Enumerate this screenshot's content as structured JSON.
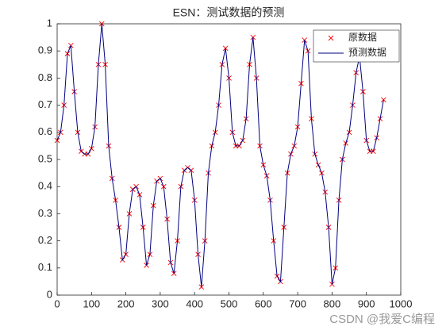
{
  "chart_data": {
    "type": "line",
    "title": "ESN：测试数据的预测",
    "x": [
      0,
      10,
      20,
      30,
      40,
      50,
      60,
      70,
      80,
      90,
      100,
      110,
      120,
      130,
      140,
      150,
      160,
      170,
      180,
      190,
      200,
      210,
      220,
      230,
      240,
      250,
      260,
      270,
      280,
      290,
      300,
      310,
      320,
      330,
      340,
      350,
      360,
      370,
      380,
      390,
      400,
      410,
      420,
      430,
      440,
      450,
      460,
      470,
      480,
      490,
      500,
      510,
      520,
      530,
      540,
      550,
      560,
      570,
      580,
      590,
      600,
      610,
      620,
      630,
      640,
      650,
      660,
      670,
      680,
      690,
      700,
      710,
      720,
      730,
      740,
      750,
      760,
      770,
      780,
      790,
      800,
      810,
      820,
      830,
      840,
      850,
      860,
      870,
      880,
      890,
      900,
      910,
      920,
      930,
      940,
      950
    ],
    "series": [
      {
        "name": "原数据",
        "color": "#ff0000",
        "marker": "x",
        "values": [
          0.57,
          0.6,
          0.7,
          0.89,
          0.92,
          0.75,
          0.6,
          0.53,
          0.52,
          0.52,
          0.54,
          0.62,
          0.85,
          1.0,
          0.85,
          0.55,
          0.43,
          0.35,
          0.25,
          0.13,
          0.15,
          0.3,
          0.39,
          0.4,
          0.37,
          0.25,
          0.11,
          0.15,
          0.33,
          0.42,
          0.43,
          0.4,
          0.28,
          0.12,
          0.08,
          0.2,
          0.4,
          0.46,
          0.47,
          0.46,
          0.35,
          0.15,
          0.03,
          0.2,
          0.45,
          0.55,
          0.6,
          0.7,
          0.85,
          0.91,
          0.8,
          0.6,
          0.55,
          0.55,
          0.57,
          0.65,
          0.85,
          0.95,
          0.8,
          0.55,
          0.48,
          0.44,
          0.35,
          0.2,
          0.07,
          0.05,
          0.25,
          0.45,
          0.52,
          0.55,
          0.62,
          0.78,
          0.94,
          0.9,
          0.65,
          0.52,
          0.48,
          0.45,
          0.38,
          0.25,
          0.04,
          0.1,
          0.35,
          0.5,
          0.56,
          0.6,
          0.7,
          0.82,
          0.88,
          0.75,
          0.57,
          0.53,
          0.53,
          0.58,
          0.65,
          0.72
        ]
      },
      {
        "name": "预测数据",
        "color": "#00007f",
        "marker": "none",
        "values": [
          0.57,
          0.6,
          0.7,
          0.89,
          0.92,
          0.75,
          0.6,
          0.53,
          0.52,
          0.52,
          0.54,
          0.62,
          0.85,
          1.0,
          0.85,
          0.55,
          0.43,
          0.35,
          0.25,
          0.13,
          0.15,
          0.3,
          0.39,
          0.4,
          0.37,
          0.25,
          0.11,
          0.15,
          0.33,
          0.42,
          0.43,
          0.4,
          0.28,
          0.12,
          0.08,
          0.2,
          0.4,
          0.46,
          0.47,
          0.46,
          0.35,
          0.15,
          0.03,
          0.2,
          0.45,
          0.55,
          0.6,
          0.7,
          0.85,
          0.91,
          0.8,
          0.6,
          0.55,
          0.55,
          0.57,
          0.65,
          0.85,
          0.95,
          0.8,
          0.55,
          0.48,
          0.44,
          0.35,
          0.2,
          0.07,
          0.05,
          0.25,
          0.45,
          0.52,
          0.55,
          0.62,
          0.78,
          0.94,
          0.9,
          0.65,
          0.52,
          0.48,
          0.45,
          0.38,
          0.25,
          0.04,
          0.1,
          0.35,
          0.5,
          0.56,
          0.6,
          0.7,
          0.82,
          0.88,
          0.75,
          0.57,
          0.53,
          0.53,
          0.58,
          0.65,
          0.72
        ]
      }
    ],
    "xlim": [
      0,
      1000
    ],
    "xticks": [
      0,
      100,
      200,
      300,
      400,
      500,
      600,
      700,
      800,
      900,
      1000
    ],
    "ylim": [
      0,
      1
    ],
    "yticks": [
      0,
      0.1,
      0.2,
      0.3,
      0.4,
      0.5,
      0.6,
      0.7,
      0.8,
      0.9,
      1
    ],
    "legend": "northeast"
  },
  "watermark": "CSDN @我爱C编程"
}
